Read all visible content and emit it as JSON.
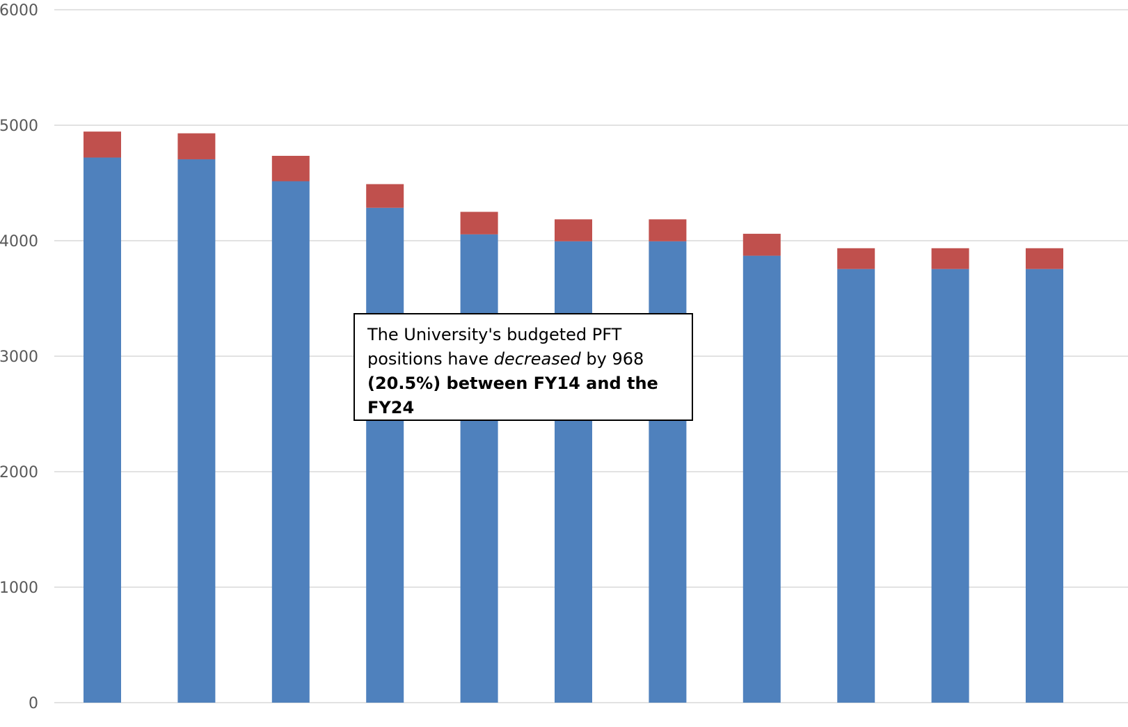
{
  "chart_data": {
    "type": "bar",
    "stacked": true,
    "categories": [
      "",
      "",
      "",
      "",
      "",
      "",
      "",
      "",
      "",
      "",
      ""
    ],
    "series": [
      {
        "color": "#4f81bd",
        "values": [
          4720,
          4705,
          4515,
          4285,
          4055,
          3995,
          3995,
          3870,
          3755,
          3755,
          3755
        ]
      },
      {
        "color": "#c0504d",
        "values": [
          225,
          225,
          220,
          205,
          195,
          190,
          190,
          190,
          180,
          180,
          180
        ]
      }
    ],
    "ylim": [
      0,
      6000
    ],
    "yticks": [
      0,
      1000,
      2000,
      3000,
      4000,
      5000,
      6000
    ],
    "grid": true,
    "title": "",
    "xlabel": "",
    "ylabel": ""
  },
  "annotation": {
    "line1": "The University's budgeted PFT",
    "line2_pre": "positions have ",
    "line2_em": "decreased",
    "line2_post": " by 968",
    "line3_bold": "(20.5%) between FY14 and the FY24"
  }
}
